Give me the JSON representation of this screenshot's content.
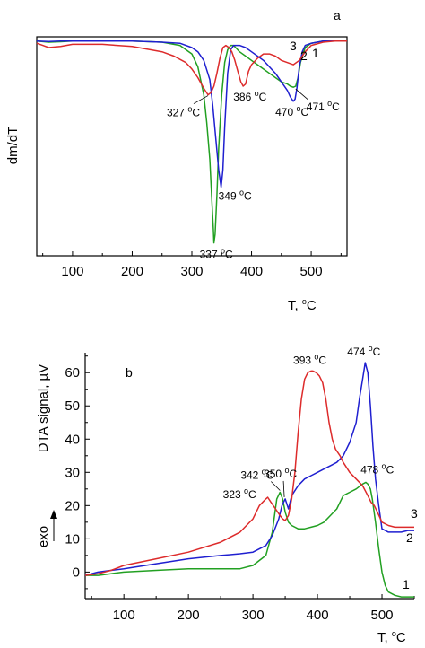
{
  "chart_data": [
    {
      "panel": "a",
      "type": "line",
      "xlabel": "T, °C",
      "xlabel_base": "T, ",
      "xlabel_sup": "o",
      "xlabel_unit": "C",
      "ylabel": "dm/dT",
      "xlim": [
        40,
        560
      ],
      "ylim": [
        -1.0,
        0.02
      ],
      "xticks": [
        100,
        200,
        300,
        400,
        500
      ],
      "xtick_labels": [
        "100",
        "200",
        "300",
        "400",
        "500"
      ],
      "series": [
        {
          "name": "1",
          "color": "#22a022",
          "x": [
            40,
            60,
            80,
            100,
            150,
            200,
            250,
            280,
            300,
            310,
            320,
            325,
            330,
            333,
            336,
            337,
            339,
            342,
            345,
            350,
            355,
            360,
            365,
            370,
            380,
            390,
            400,
            410,
            420,
            430,
            440,
            450,
            460,
            465,
            470,
            474,
            478,
            482,
            490,
            500,
            520,
            540,
            560
          ],
          "y": [
            0,
            -0.005,
            -0.003,
            0,
            0,
            0,
            -0.005,
            -0.02,
            -0.06,
            -0.12,
            -0.25,
            -0.38,
            -0.55,
            -0.72,
            -0.88,
            -0.94,
            -0.9,
            -0.72,
            -0.5,
            -0.25,
            -0.1,
            -0.04,
            -0.02,
            -0.02,
            -0.05,
            -0.07,
            -0.09,
            -0.11,
            -0.13,
            -0.15,
            -0.17,
            -0.19,
            -0.2,
            -0.21,
            -0.215,
            -0.21,
            -0.17,
            -0.1,
            -0.03,
            -0.01,
            0,
            0,
            0
          ]
        },
        {
          "name": "2",
          "color": "#1f1fd0",
          "x": [
            40,
            60,
            80,
            100,
            150,
            200,
            250,
            280,
            300,
            310,
            320,
            330,
            335,
            340,
            345,
            349,
            352,
            355,
            360,
            365,
            370,
            380,
            390,
            400,
            410,
            420,
            430,
            440,
            450,
            460,
            465,
            470,
            473,
            476,
            480,
            485,
            490,
            500,
            520,
            540,
            560
          ],
          "y": [
            0,
            -0.002,
            0,
            0,
            0,
            0,
            -0.005,
            -0.01,
            -0.03,
            -0.05,
            -0.09,
            -0.18,
            -0.3,
            -0.45,
            -0.6,
            -0.68,
            -0.6,
            -0.4,
            -0.15,
            -0.04,
            -0.02,
            -0.02,
            -0.03,
            -0.05,
            -0.07,
            -0.09,
            -0.12,
            -0.15,
            -0.19,
            -0.23,
            -0.26,
            -0.28,
            -0.27,
            -0.22,
            -0.12,
            -0.05,
            -0.02,
            -0.01,
            0,
            0,
            0
          ]
        },
        {
          "name": "3",
          "color": "#dd2b2b",
          "x": [
            40,
            50,
            60,
            80,
            100,
            150,
            200,
            250,
            270,
            290,
            300,
            310,
            320,
            327,
            332,
            337,
            342,
            347,
            352,
            357,
            362,
            367,
            372,
            377,
            382,
            386,
            390,
            395,
            400,
            410,
            420,
            430,
            440,
            450,
            460,
            470,
            480,
            490,
            500,
            520,
            540,
            560
          ],
          "y": [
            -0.01,
            -0.02,
            -0.03,
            -0.025,
            -0.015,
            -0.015,
            -0.025,
            -0.05,
            -0.07,
            -0.1,
            -0.13,
            -0.17,
            -0.22,
            -0.25,
            -0.24,
            -0.21,
            -0.15,
            -0.08,
            -0.03,
            -0.02,
            -0.03,
            -0.05,
            -0.09,
            -0.14,
            -0.19,
            -0.21,
            -0.2,
            -0.14,
            -0.11,
            -0.08,
            -0.06,
            -0.06,
            -0.07,
            -0.09,
            -0.1,
            -0.11,
            -0.09,
            -0.05,
            -0.02,
            -0.005,
            0,
            0
          ]
        }
      ],
      "annotations": [
        {
          "text": "327 °C",
          "base": "327 ",
          "x": 327,
          "y": -0.25
        },
        {
          "text": "349 °C",
          "base": "349 ",
          "x": 349,
          "y": -0.68
        },
        {
          "text": "337 °C",
          "base": "337 ",
          "x": 337,
          "y": -0.94
        },
        {
          "text": "386 °C",
          "base": "386 ",
          "x": 386,
          "y": -0.21
        },
        {
          "text": "470 °C",
          "base": "470 ",
          "x": 470,
          "y": -0.28
        },
        {
          "text": "471 °C",
          "base": "471 ",
          "x": 471,
          "y": -0.215
        }
      ],
      "curve_labels": [
        "3",
        "2",
        "1"
      ]
    },
    {
      "panel": "b",
      "type": "line",
      "xlabel": "T, °C",
      "xlabel_base": "T, ",
      "xlabel_sup": "o",
      "xlabel_unit": "C",
      "ylabel": "DTA signal, µV",
      "ylabel_text": "DTA signal, ",
      "ylabel_unit": "µV",
      "side_label": "exo",
      "xlim": [
        40,
        550
      ],
      "ylim": [
        -8,
        66
      ],
      "xticks": [
        100,
        200,
        300,
        400,
        500
      ],
      "xtick_labels": [
        "100",
        "200",
        "300",
        "400",
        "500"
      ],
      "yticks": [
        0,
        10,
        20,
        30,
        40,
        50,
        60
      ],
      "ytick_labels": [
        "0",
        "10",
        "20",
        "30",
        "40",
        "50",
        "60"
      ],
      "series": [
        {
          "name": "1",
          "color": "#22a022",
          "x": [
            40,
            60,
            80,
            100,
            150,
            200,
            250,
            280,
            300,
            320,
            330,
            337,
            342,
            346,
            350,
            355,
            360,
            370,
            380,
            390,
            400,
            410,
            420,
            430,
            440,
            450,
            460,
            470,
            475,
            478,
            482,
            485,
            490,
            495,
            500,
            505,
            510,
            520,
            530,
            540,
            550
          ],
          "y": [
            -1,
            -1,
            -0.5,
            0,
            0.5,
            1,
            1,
            1,
            2,
            5,
            12,
            22,
            24,
            22,
            18,
            15,
            14,
            13,
            13,
            13.5,
            14,
            15,
            17,
            19,
            23,
            24,
            25,
            26.5,
            27,
            26.5,
            25,
            22,
            15,
            7,
            0,
            -4,
            -6,
            -7,
            -7.5,
            -7.5,
            -7.5
          ]
        },
        {
          "name": "2",
          "color": "#1f1fd0",
          "x": [
            40,
            60,
            80,
            100,
            150,
            200,
            250,
            280,
            300,
            320,
            330,
            340,
            345,
            350,
            355,
            360,
            370,
            380,
            390,
            400,
            410,
            420,
            430,
            440,
            450,
            460,
            465,
            470,
            474,
            478,
            482,
            486,
            490,
            495,
            500,
            510,
            520,
            530,
            540,
            550
          ],
          "y": [
            -1,
            0,
            0.5,
            1,
            2.5,
            4,
            5,
            5.5,
            6,
            8,
            11,
            16,
            20,
            22,
            19,
            23,
            26,
            28,
            29,
            30,
            31,
            32,
            33,
            35,
            39,
            45,
            52,
            58,
            63,
            60,
            50,
            38,
            28,
            20,
            13,
            12,
            12,
            12,
            12.5,
            12.5
          ]
        },
        {
          "name": "3",
          "color": "#dd2b2b",
          "x": [
            40,
            60,
            80,
            100,
            150,
            200,
            250,
            280,
            300,
            310,
            320,
            323,
            328,
            335,
            342,
            346,
            350,
            355,
            360,
            365,
            370,
            375,
            380,
            385,
            390,
            393,
            398,
            403,
            408,
            413,
            418,
            423,
            428,
            435,
            440,
            450,
            460,
            470,
            478,
            483,
            488,
            493,
            500,
            510,
            520,
            530,
            540,
            550
          ],
          "y": [
            -1,
            -0.5,
            0.5,
            2,
            4,
            6,
            9,
            12,
            16,
            20,
            22,
            22.5,
            21,
            19,
            17,
            16,
            15.5,
            17,
            22,
            30,
            42,
            52,
            58,
            60,
            60.5,
            60.5,
            60,
            59,
            57,
            52,
            45,
            40,
            37,
            35,
            33,
            30,
            28,
            26,
            23,
            21,
            20,
            18,
            15,
            14,
            13.5,
            13.5,
            13.5,
            13.5
          ]
        }
      ],
      "annotations": [
        {
          "text": "393 °C",
          "base": "393 ",
          "x": 393,
          "y": 60.5
        },
        {
          "text": "474 °C",
          "base": "474 ",
          "x": 474,
          "y": 63
        },
        {
          "text": "342 °C",
          "base": "342 ",
          "x": 342,
          "y": 24
        },
        {
          "text": "350 °C",
          "base": "350 ",
          "x": 350,
          "y": 22
        },
        {
          "text": "323 °C",
          "base": "323 ",
          "x": 323,
          "y": 22.5
        },
        {
          "text": "478 °C",
          "base": "478 ",
          "x": 478,
          "y": 27
        }
      ],
      "curve_labels": [
        "3",
        "2",
        "1"
      ]
    }
  ]
}
